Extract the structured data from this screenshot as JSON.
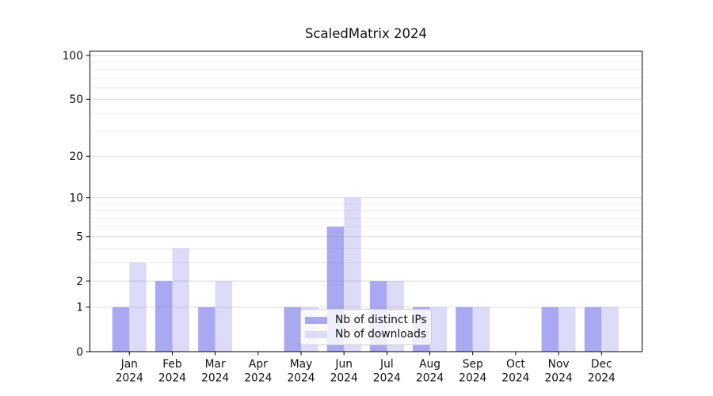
{
  "chart_data": {
    "type": "bar",
    "title": "ScaledMatrix 2024",
    "categories": [
      "Jan",
      "Feb",
      "Mar",
      "Apr",
      "May",
      "Jun",
      "Jul",
      "Aug",
      "Sep",
      "Oct",
      "Nov",
      "Dec"
    ],
    "category_year": "2024",
    "series": [
      {
        "name": "Nb of distinct IPs",
        "color": "#a9a8f0",
        "values": [
          1,
          2,
          1,
          0,
          1,
          6,
          2,
          1,
          1,
          0,
          1,
          1
        ]
      },
      {
        "name": "Nb of downloads",
        "color": "#dcdbf8",
        "values": [
          3,
          4,
          2,
          0,
          1,
          10,
          2,
          1,
          1,
          0,
          1,
          1
        ]
      }
    ],
    "yscale": "log1p",
    "ylim": [
      0,
      107.7
    ],
    "yticks_major": [
      0,
      1,
      2,
      5,
      10,
      20,
      50,
      100
    ],
    "yticks_minor": [
      3,
      4,
      6,
      7,
      8,
      9,
      30,
      40,
      60,
      70,
      80,
      90
    ],
    "grid": "horizontal-major-and-minor",
    "legend_position": "lower center-left, inside plot",
    "colors": {
      "grid_major": "rgba(150,150,150,0.35)",
      "grid_minor": "rgba(150,150,150,0.16)",
      "spine": "#000000",
      "text": "#111111"
    }
  }
}
